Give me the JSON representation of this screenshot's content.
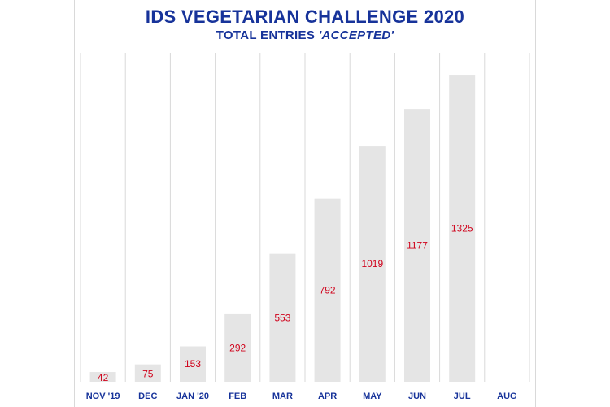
{
  "chart_data": {
    "type": "bar",
    "title": "IDS VEGETARIAN CHALLENGE 2020",
    "subtitle_prefix": "TOTAL ENTRIES ",
    "subtitle_emphasis": "'ACCEPTED'",
    "categories": [
      "NOV '19",
      "DEC",
      "JAN '20",
      "FEB",
      "MAR",
      "APR",
      "MAY",
      "JUN",
      "JUL",
      "AUG"
    ],
    "values": [
      42,
      75,
      153,
      292,
      553,
      792,
      1019,
      1177,
      1325,
      null
    ],
    "ylim": [
      0,
      1420
    ],
    "grid": true,
    "xlabel": "",
    "ylabel": "",
    "colors": {
      "bar": "#e5e5e5",
      "value_label": "#d0021b",
      "title": "#17339a",
      "grid": "#d9d9d9"
    }
  }
}
